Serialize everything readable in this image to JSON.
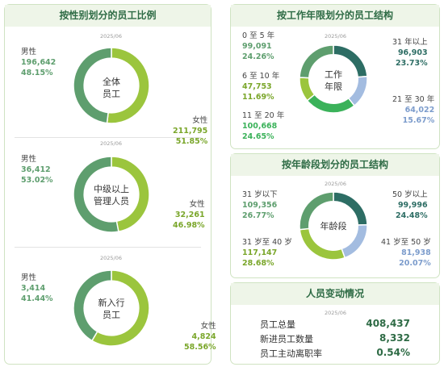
{
  "colors": {
    "men": "#5e9e6e",
    "women": "#9bc53d",
    "yr0_5": "#5e9e6e",
    "yr6_10": "#9bc53d",
    "yr11_20": "#3bb25a",
    "yr21_30": "#a3bce0",
    "yr31": "#2d6d64",
    "age31": "#5e9e6e",
    "age31_40": "#9bc53d",
    "age41_50": "#a3bce0",
    "age50": "#2d6d64"
  },
  "gender_panel": {
    "title": "按性别划分的员工比例",
    "charts": [
      {
        "date": "2025/06",
        "center": "全体\n员工",
        "men": {
          "label": "男性",
          "value": "196,642",
          "pct": "48.15%"
        },
        "women": {
          "label": "女性",
          "value": "211,795",
          "pct": "51.85%"
        }
      },
      {
        "date": "2025/06",
        "center": "中级以上\n管理人员",
        "men": {
          "label": "男性",
          "value": "36,412",
          "pct": "53.02%"
        },
        "women": {
          "label": "女性",
          "value": "32,261",
          "pct": "46.98%"
        }
      },
      {
        "date": "2025/06",
        "center": "新入行\n员工",
        "men": {
          "label": "男性",
          "value": "3,414",
          "pct": "41.44%"
        },
        "women": {
          "label": "女性",
          "value": "4,824",
          "pct": "58.56%"
        }
      }
    ]
  },
  "tenure_panel": {
    "title": "按工作年限划分的员工结构",
    "date": "2025/06",
    "center": "工作\n年限",
    "items": [
      {
        "label": "0 至 5 年",
        "value": "99,091",
        "pct": "24.26%"
      },
      {
        "label": "6 至 10 年",
        "value": "47,753",
        "pct": "11.69%"
      },
      {
        "label": "11 至 20 年",
        "value": "100,668",
        "pct": "24.65%"
      },
      {
        "label": "21 至 30 年",
        "value": "64,022",
        "pct": "15.67%"
      },
      {
        "label": "31 年以上",
        "value": "96,903",
        "pct": "23.73%"
      }
    ]
  },
  "age_panel": {
    "title": "按年龄段划分的员工结构",
    "date": "2025/06",
    "center": "年龄段",
    "items": [
      {
        "label": "31 岁以下",
        "value": "109,356",
        "pct": "26.77%"
      },
      {
        "label": "31 岁至 40 岁",
        "value": "117,147",
        "pct": "28.68%"
      },
      {
        "label": "41 岁至 50 岁",
        "value": "81,938",
        "pct": "20.07%"
      },
      {
        "label": "50 岁以上",
        "value": "99,996",
        "pct": "24.48%"
      }
    ]
  },
  "change_panel": {
    "title": "人员变动情况",
    "date": "2025/06",
    "rows": [
      {
        "label": "员工总量",
        "value": "408,437"
      },
      {
        "label": "新进员工数量",
        "value": "8,332"
      },
      {
        "label": "员工主动离职率",
        "value": "0.54%"
      }
    ]
  },
  "chart_data": [
    {
      "type": "pie",
      "title": "按性别划分的员工比例",
      "subtitle": "全体员工",
      "categories": [
        "男性",
        "女性"
      ],
      "values": [
        196642,
        211795
      ],
      "percent": [
        48.15,
        51.85
      ]
    },
    {
      "type": "pie",
      "title": "按性别划分的员工比例",
      "subtitle": "中级以上管理人员",
      "categories": [
        "男性",
        "女性"
      ],
      "values": [
        36412,
        32261
      ],
      "percent": [
        53.02,
        46.98
      ]
    },
    {
      "type": "pie",
      "title": "按性别划分的员工比例",
      "subtitle": "新入行员工",
      "categories": [
        "男性",
        "女性"
      ],
      "values": [
        3414,
        4824
      ],
      "percent": [
        41.44,
        58.56
      ]
    },
    {
      "type": "pie",
      "title": "按工作年限划分的员工结构",
      "categories": [
        "0 至 5 年",
        "6 至 10 年",
        "11 至 20 年",
        "21 至 30 年",
        "31 年以上"
      ],
      "values": [
        99091,
        47753,
        100668,
        64022,
        96903
      ],
      "percent": [
        24.26,
        11.69,
        24.65,
        15.67,
        23.73
      ]
    },
    {
      "type": "pie",
      "title": "按年龄段划分的员工结构",
      "categories": [
        "31 岁以下",
        "31 岁至 40 岁",
        "41 岁至 50 岁",
        "50 岁以上"
      ],
      "values": [
        109356,
        117147,
        81938,
        99996
      ],
      "percent": [
        26.77,
        28.68,
        20.07,
        24.48
      ]
    },
    {
      "type": "table",
      "title": "人员变动情况",
      "rows": [
        [
          "员工总量",
          "408,437"
        ],
        [
          "新进员工数量",
          "8,332"
        ],
        [
          "员工主动离职率",
          "0.54%"
        ]
      ]
    }
  ]
}
